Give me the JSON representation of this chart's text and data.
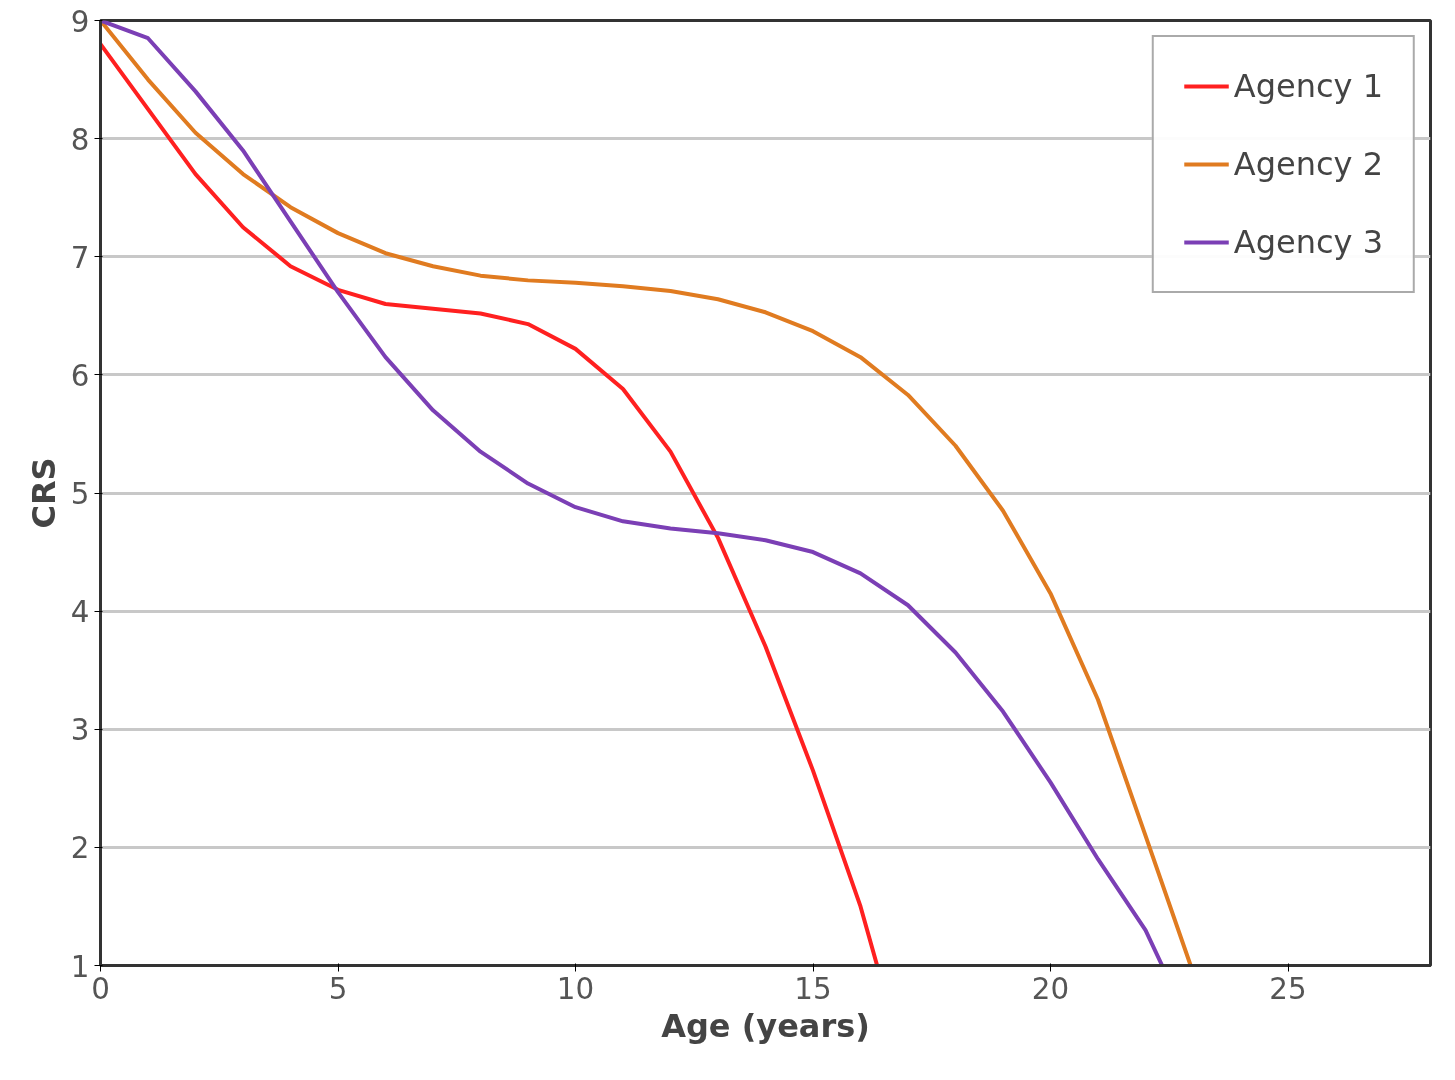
{
  "chart_data": {
    "type": "line",
    "xlabel": "Age (years)",
    "ylabel": "CRS",
    "xlim": [
      0,
      28
    ],
    "ylim": [
      1,
      9
    ],
    "xticks": [
      0,
      5,
      10,
      15,
      20,
      25
    ],
    "yticks": [
      1,
      2,
      3,
      4,
      5,
      6,
      7,
      8,
      9
    ],
    "grid": "y",
    "legend": "top right",
    "line_style": "solid",
    "marker": "none",
    "series": [
      {
        "name": "Agency 1",
        "color": "#ff2020",
        "x": [
          0,
          1,
          2,
          3,
          4,
          5,
          6,
          7,
          8,
          9,
          10,
          11,
          12,
          13,
          14,
          15,
          16,
          16.35
        ],
        "values": [
          8.8,
          8.25,
          7.7,
          7.25,
          6.92,
          6.72,
          6.6,
          6.56,
          6.52,
          6.43,
          6.22,
          5.88,
          5.35,
          4.62,
          3.7,
          2.65,
          1.5,
          1.0
        ]
      },
      {
        "name": "Agency 2",
        "color": "#e07b20",
        "x": [
          0,
          1,
          2,
          3,
          4,
          5,
          6,
          7,
          8,
          9,
          10,
          11,
          12,
          13,
          14,
          15,
          16,
          17,
          18,
          19,
          20,
          21,
          22,
          22.95
        ],
        "values": [
          9.0,
          8.5,
          8.05,
          7.7,
          7.42,
          7.2,
          7.03,
          6.92,
          6.84,
          6.8,
          6.78,
          6.75,
          6.71,
          6.64,
          6.53,
          6.37,
          6.15,
          5.83,
          5.4,
          4.85,
          4.15,
          3.25,
          2.1,
          1.0
        ]
      },
      {
        "name": "Agency 3",
        "color": "#7b3fb5",
        "x": [
          0,
          1,
          2,
          3,
          4,
          5,
          6,
          7,
          8,
          9,
          10,
          11,
          12,
          13,
          14,
          15,
          16,
          17,
          18,
          19,
          20,
          21,
          22,
          22.35
        ],
        "values": [
          9.0,
          8.85,
          8.4,
          7.9,
          7.3,
          6.7,
          6.15,
          5.7,
          5.35,
          5.08,
          4.88,
          4.76,
          4.7,
          4.66,
          4.6,
          4.5,
          4.32,
          4.05,
          3.65,
          3.15,
          2.55,
          1.9,
          1.3,
          1.0
        ]
      }
    ]
  }
}
